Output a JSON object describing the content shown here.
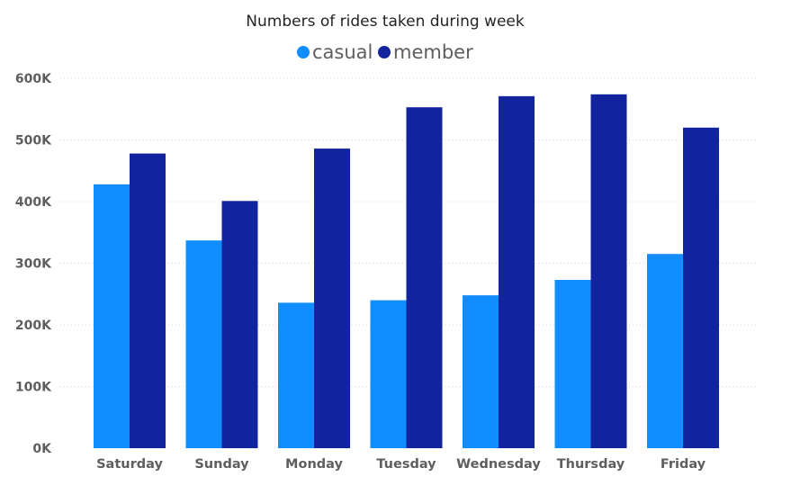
{
  "chart_data": {
    "type": "bar",
    "title": "Numbers of rides taken during week",
    "categories": [
      "Saturday",
      "Sunday",
      "Monday",
      "Tuesday",
      "Wednesday",
      "Thursday",
      "Friday"
    ],
    "series": [
      {
        "name": "casual",
        "color": "#118DFF",
        "values": [
          428000,
          337000,
          236000,
          240000,
          248000,
          273000,
          315000
        ]
      },
      {
        "name": "member",
        "color": "#12239E",
        "values": [
          478000,
          401000,
          486000,
          553000,
          571000,
          574000,
          520000
        ]
      }
    ],
    "xlabel": "",
    "ylabel": "",
    "ylim": [
      0,
      600000
    ],
    "yticks": [
      0,
      100000,
      200000,
      300000,
      400000,
      500000,
      600000
    ],
    "ytick_labels": [
      "0K",
      "100K",
      "200K",
      "300K",
      "400K",
      "500K",
      "600K"
    ],
    "legend_position": "top-center",
    "grid": true
  }
}
